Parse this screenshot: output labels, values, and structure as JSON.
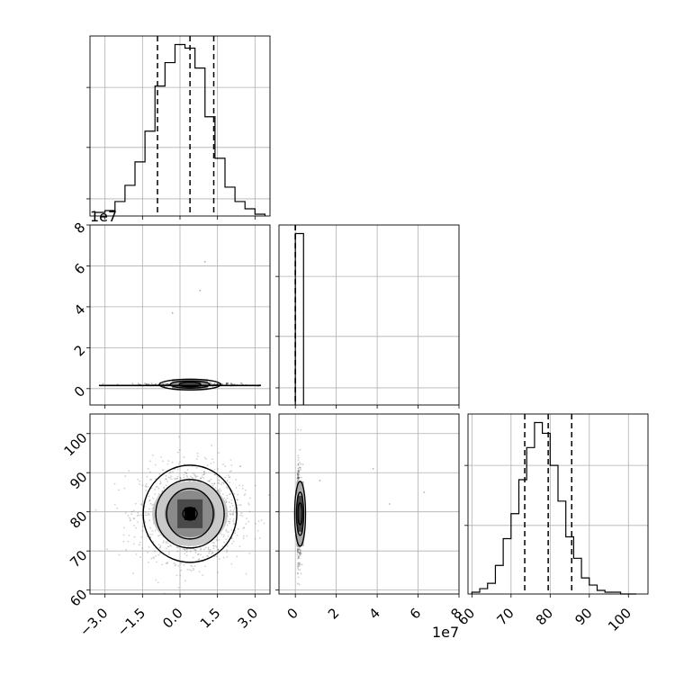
{
  "chart_data": [
    {
      "panel": "hist-x",
      "type": "histogram",
      "xlim": [
        -3.6,
        3.6
      ],
      "grid": true,
      "bins": {
        "edges": [
          -3.4,
          -3.0,
          -2.6,
          -2.2,
          -1.8,
          -1.4,
          -1.0,
          -0.6,
          -0.2,
          0.2,
          0.6,
          1.0,
          1.4,
          1.8,
          2.2,
          2.6,
          3.0,
          3.4
        ],
        "counts": [
          2,
          3,
          8,
          17,
          30,
          47,
          72,
          85,
          95,
          93,
          82,
          55,
          32,
          16,
          8,
          4,
          1
        ]
      },
      "quantile_lines": [
        -0.9,
        0.4,
        1.35
      ]
    },
    {
      "panel": "scatter-x-y",
      "type": "scatter",
      "x_ticks": [
        "−3.0",
        "−1.5",
        "0.0",
        "1.5",
        "3.0"
      ],
      "y_ticks": [
        "0",
        "2",
        "4",
        "6",
        "8"
      ],
      "y_offset_label": "1e7",
      "xlim": [
        -3.6,
        3.6
      ],
      "ylim": [
        -0.8,
        8.0
      ],
      "grid": true,
      "density_center": [
        0.4,
        0.2
      ],
      "outliers": [
        [
          -0.3,
          3.7
        ],
        [
          0.8,
          4.8
        ],
        [
          1.0,
          6.2
        ]
      ]
    },
    {
      "panel": "hist-y",
      "type": "histogram",
      "xlim": [
        -0.8,
        8.0
      ],
      "grid": true,
      "bins": {
        "edges": [
          0.0,
          0.4
        ],
        "counts": [
          100
        ]
      },
      "quantile_lines": [
        0.0,
        0.0,
        0.0
      ]
    },
    {
      "panel": "scatter-x-z",
      "type": "scatter",
      "xlim": [
        -3.6,
        3.6
      ],
      "ylim": [
        59,
        105
      ],
      "grid": true,
      "y_ticks": [
        "60",
        "70",
        "80",
        "90",
        "100"
      ],
      "x_ticks": [
        "−3.0",
        "−1.5",
        "0.0",
        "1.5",
        "3.0"
      ],
      "density_center": [
        0.4,
        79.5
      ]
    },
    {
      "panel": "scatter-y-z",
      "type": "scatter",
      "xlim": [
        -0.8,
        8.0
      ],
      "ylim": [
        59,
        105
      ],
      "grid": true,
      "x_ticks": [
        "0",
        "2",
        "4",
        "6",
        "8"
      ],
      "x_offset_label": "1e7",
      "density_center": [
        0.1,
        79.5
      ]
    },
    {
      "panel": "hist-z",
      "type": "histogram",
      "xlim": [
        59,
        105
      ],
      "grid": true,
      "bins": {
        "edges": [
          60,
          62,
          64,
          66,
          68,
          70,
          72,
          74,
          76,
          78,
          80,
          82,
          84,
          86,
          88,
          90,
          92,
          94,
          96,
          98,
          100,
          102
        ],
        "counts": [
          1,
          3,
          6,
          16,
          31,
          45,
          64,
          82,
          96,
          90,
          72,
          52,
          32,
          20,
          9,
          5,
          2,
          1,
          1,
          0,
          0
        ]
      },
      "quantile_lines": [
        73.5,
        79.5,
        85.5
      ],
      "x_ticks": [
        "60",
        "70",
        "80",
        "90",
        "100"
      ]
    }
  ]
}
